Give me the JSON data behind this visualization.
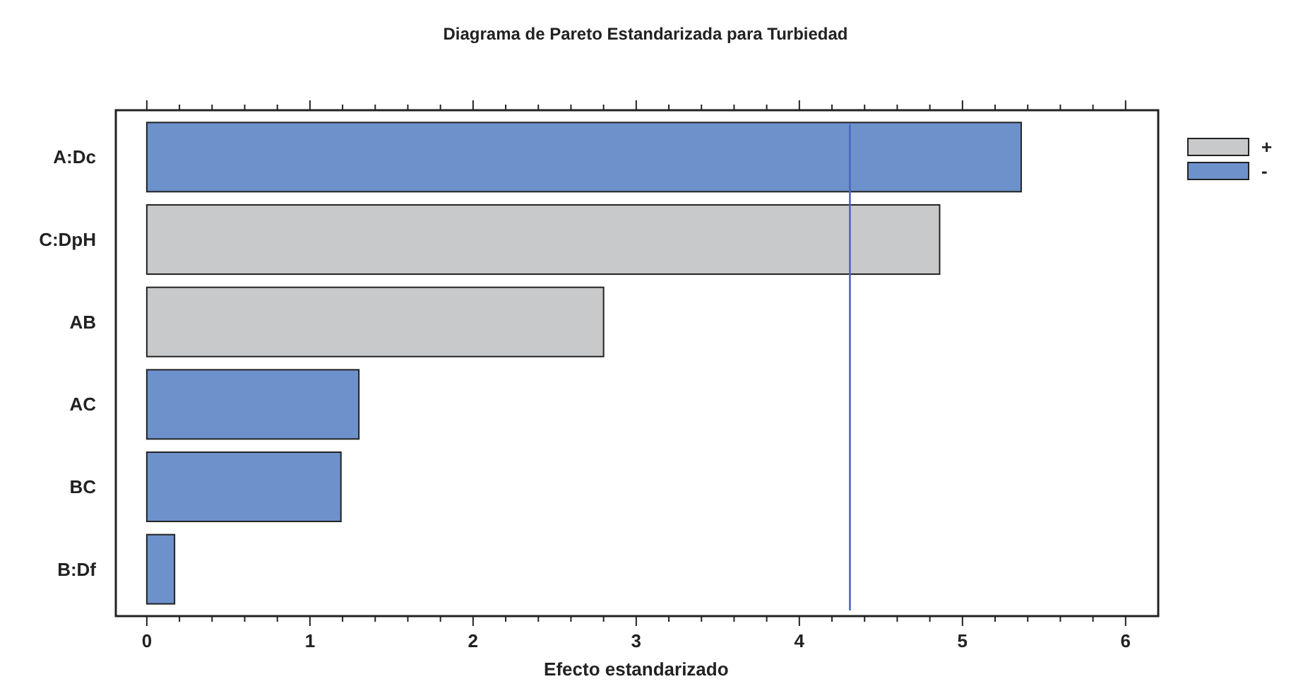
{
  "chart_data": {
    "type": "bar",
    "orientation": "horizontal",
    "title": "Diagrama de Pareto Estandarizada para Turbiedad",
    "xlabel": "Efecto estandarizado",
    "categories": [
      "A:Dc",
      "C:DpH",
      "AB",
      "AC",
      "BC",
      "B:Df"
    ],
    "series": [
      {
        "name": "+",
        "color": "#c8c9cb",
        "values": [
          null,
          4.86,
          2.8,
          null,
          null,
          null
        ]
      },
      {
        "name": "-",
        "color": "#6d91cb",
        "values": [
          5.36,
          null,
          null,
          1.3,
          1.19,
          0.17
        ]
      }
    ],
    "xlim": [
      -0.19,
      6.2
    ],
    "xticks": [
      0,
      {
        "value": 0.2,
        "label": null
      },
      {
        "value": 0.4,
        "label": null
      },
      {
        "value": 0.6,
        "label": null
      },
      {
        "value": 0.8,
        "label": null
      },
      1,
      {
        "value": 1.2,
        "label": null
      },
      {
        "value": 1.4,
        "label": null
      },
      {
        "value": 1.6,
        "label": null
      },
      {
        "value": 1.8,
        "label": null
      },
      2,
      {
        "value": 2.2,
        "label": null
      },
      {
        "value": 2.4,
        "label": null
      },
      {
        "value": 2.6,
        "label": null
      },
      {
        "value": 2.8,
        "label": null
      },
      3,
      {
        "value": 3.2,
        "label": null
      },
      {
        "value": 3.4,
        "label": null
      },
      {
        "value": 3.6,
        "label": null
      },
      {
        "value": 3.8,
        "label": null
      },
      4,
      {
        "value": 4.2,
        "label": null
      },
      {
        "value": 4.4,
        "label": null
      },
      {
        "value": 4.6,
        "label": null
      },
      {
        "value": 4.8,
        "label": null
      },
      5,
      {
        "value": 5.2,
        "label": null
      },
      {
        "value": 5.4,
        "label": null
      },
      {
        "value": 5.6,
        "label": null
      },
      {
        "value": 5.8,
        "label": null
      },
      6
    ],
    "ref_lines": [
      {
        "axis": "x",
        "value": 4.31,
        "color": "#4a66c4"
      }
    ],
    "legend": "top right",
    "grid": false
  }
}
